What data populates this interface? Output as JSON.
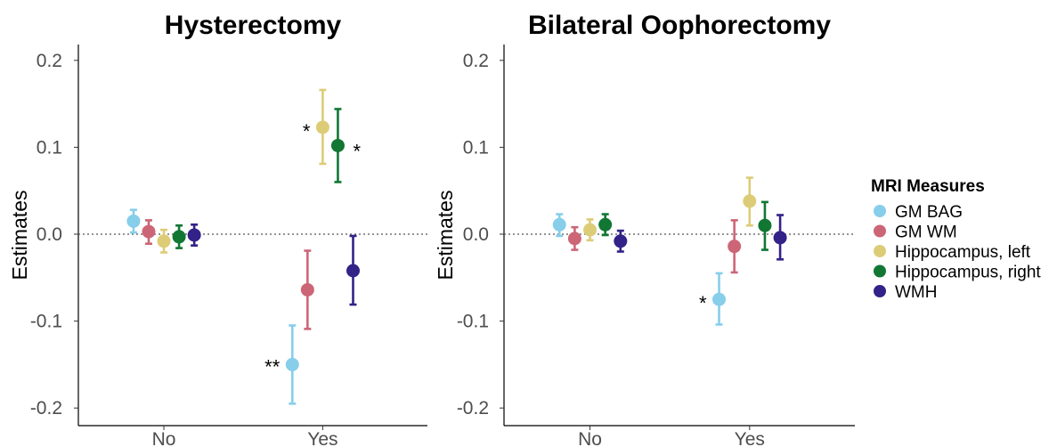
{
  "chart_data": [
    {
      "type": "scatter",
      "title": "Hysterectomy",
      "ylabel": "Estimates",
      "xlabel": "",
      "categories": [
        "No",
        "Yes"
      ],
      "ylim": [
        -0.22,
        0.22
      ],
      "yticks": [
        "0.2",
        "0.1",
        "0.0",
        "-0.1",
        "-0.2"
      ],
      "reference_line": 0,
      "series": [
        {
          "name": "GM BAG",
          "points": [
            {
              "x": "No",
              "y": 0.015,
              "lo": 0.002,
              "hi": 0.028
            },
            {
              "x": "Yes",
              "y": -0.15,
              "lo": -0.195,
              "hi": -0.105,
              "sig": "**"
            }
          ]
        },
        {
          "name": "GM WM",
          "points": [
            {
              "x": "No",
              "y": 0.003,
              "lo": -0.011,
              "hi": 0.016
            },
            {
              "x": "Yes",
              "y": -0.064,
              "lo": -0.109,
              "hi": -0.019
            }
          ]
        },
        {
          "name": "Hippocampus, left",
          "points": [
            {
              "x": "No",
              "y": -0.008,
              "lo": -0.021,
              "hi": 0.005
            },
            {
              "x": "Yes",
              "y": 0.123,
              "lo": 0.081,
              "hi": 0.166,
              "sig": "*"
            }
          ]
        },
        {
          "name": "Hippocampus, right",
          "points": [
            {
              "x": "No",
              "y": -0.003,
              "lo": -0.016,
              "hi": 0.01
            },
            {
              "x": "Yes",
              "y": 0.102,
              "lo": 0.06,
              "hi": 0.144,
              "sig": "*"
            }
          ]
        },
        {
          "name": "WMH",
          "points": [
            {
              "x": "No",
              "y": -0.001,
              "lo": -0.013,
              "hi": 0.011
            },
            {
              "x": "Yes",
              "y": -0.042,
              "lo": -0.081,
              "hi": -0.002
            }
          ]
        }
      ]
    },
    {
      "type": "scatter",
      "title": "Bilateral Oophorectomy",
      "ylabel": "Estimates",
      "xlabel": "",
      "categories": [
        "No",
        "Yes"
      ],
      "ylim": [
        -0.22,
        0.22
      ],
      "yticks": [
        "0.2",
        "0.1",
        "0.0",
        "-0.1",
        "-0.2"
      ],
      "reference_line": 0,
      "series": [
        {
          "name": "GM BAG",
          "points": [
            {
              "x": "No",
              "y": 0.011,
              "lo": -0.002,
              "hi": 0.023
            },
            {
              "x": "Yes",
              "y": -0.075,
              "lo": -0.104,
              "hi": -0.045,
              "sig": "*"
            }
          ]
        },
        {
          "name": "GM WM",
          "points": [
            {
              "x": "No",
              "y": -0.005,
              "lo": -0.018,
              "hi": 0.008
            },
            {
              "x": "Yes",
              "y": -0.014,
              "lo": -0.044,
              "hi": 0.016
            }
          ]
        },
        {
          "name": "Hippocampus, left",
          "points": [
            {
              "x": "No",
              "y": 0.005,
              "lo": -0.007,
              "hi": 0.017
            },
            {
              "x": "Yes",
              "y": 0.038,
              "lo": 0.01,
              "hi": 0.065
            }
          ]
        },
        {
          "name": "Hippocampus, right",
          "points": [
            {
              "x": "No",
              "y": 0.011,
              "lo": -0.001,
              "hi": 0.023
            },
            {
              "x": "Yes",
              "y": 0.01,
              "lo": -0.018,
              "hi": 0.037
            }
          ]
        },
        {
          "name": "WMH",
          "points": [
            {
              "x": "No",
              "y": -0.008,
              "lo": -0.02,
              "hi": 0.004
            },
            {
              "x": "Yes",
              "y": -0.004,
              "lo": -0.029,
              "hi": 0.022
            }
          ]
        }
      ]
    }
  ],
  "legend": {
    "title": "MRI Measures",
    "placement": "right",
    "items": [
      {
        "label": "GM BAG",
        "color": "#87CEEB"
      },
      {
        "label": "GM WM",
        "color": "#CC6677"
      },
      {
        "label": "Hippocampus, left",
        "color": "#DDCC77"
      },
      {
        "label": "Hippocampus, right",
        "color": "#117733"
      },
      {
        "label": "WMH",
        "color": "#332288"
      }
    ]
  }
}
